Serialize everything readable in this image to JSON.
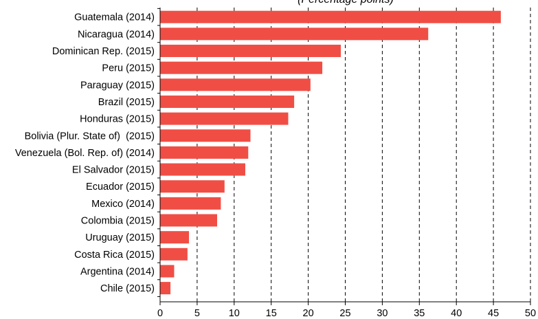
{
  "title": "(Percentage points)",
  "chart_data": {
    "type": "bar",
    "orientation": "horizontal",
    "title": "(Percentage points)",
    "xlabel": "",
    "ylabel": "",
    "xlim": [
      0,
      50
    ],
    "x_ticks": [
      0,
      5,
      10,
      15,
      20,
      25,
      30,
      35,
      40,
      45,
      50
    ],
    "grid": "vertical dashed",
    "bar_color": "#f04e45",
    "categories": [
      "Guatemala (2014)",
      "Nicaragua (2014)",
      "Dominican Rep. (2015)",
      "Peru (2015)",
      "Paraguay (2015)",
      "Brazil (2015)",
      "Honduras (2015)",
      "Bolivia (Plur. State of)  (2015)",
      "Venezuela (Bol. Rep. of) (2014)",
      "El Salvador (2015)",
      "Ecuador (2015)",
      "Mexico (2014)",
      "Colombia (2015)",
      "Uruguay (2015)",
      "Costa Rica (2015)",
      "Argentina (2014)",
      "Chile (2015)"
    ],
    "values": [
      46.0,
      36.2,
      24.4,
      21.9,
      20.3,
      18.1,
      17.3,
      12.2,
      11.9,
      11.5,
      8.7,
      8.2,
      7.7,
      3.9,
      3.7,
      1.9,
      1.4
    ]
  }
}
